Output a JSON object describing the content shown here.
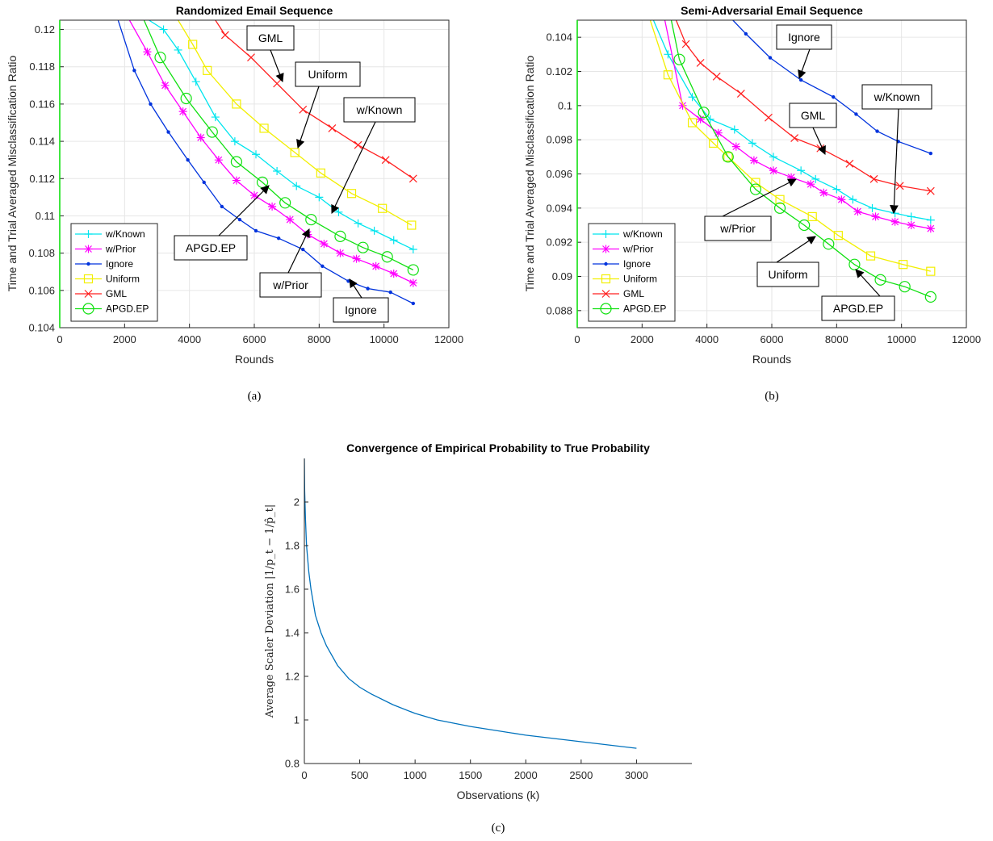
{
  "chart_data": [
    {
      "id": "a",
      "type": "line",
      "title": "Randomized Email Sequence",
      "xlabel": "Rounds",
      "ylabel": "Time and Trial Averaged Misclassification Ratio",
      "caption": "(a)",
      "xlim": [
        0,
        12000
      ],
      "ylim": [
        0.104,
        0.1205
      ],
      "xticks": [
        0,
        2000,
        4000,
        6000,
        8000,
        10000,
        12000
      ],
      "xtick_labels": [
        "0",
        "2000",
        "4000",
        "6000",
        "8000",
        "10000",
        "12000"
      ],
      "yticks": [
        0.104,
        0.106,
        0.108,
        0.11,
        0.112,
        0.114,
        0.116,
        0.118,
        0.12
      ],
      "ytick_labels": [
        "0.104",
        "0.106",
        "0.108",
        "0.11",
        "0.112",
        "0.114",
        "0.116",
        "0.118",
        "0.12"
      ],
      "grid": true,
      "legend_position": "bottom-left",
      "series": [
        {
          "name": "w/Known",
          "color": "#00e5ee",
          "marker": "plus",
          "x": [
            2750,
            3200,
            3650,
            4200,
            4800,
            5400,
            6050,
            6700,
            7300,
            8000,
            8600,
            9200,
            9700,
            10300,
            10900
          ],
          "y": [
            0.1205,
            0.12,
            0.1189,
            0.1172,
            0.1153,
            0.114,
            0.1133,
            0.1124,
            0.1116,
            0.111,
            0.1102,
            0.1096,
            0.1092,
            0.1087,
            0.1082
          ]
        },
        {
          "name": "w/Prior",
          "color": "#ff00ff",
          "marker": "star",
          "x": [
            2150,
            2700,
            3250,
            3800,
            4350,
            4900,
            5450,
            6000,
            6550,
            7100,
            7650,
            8150,
            8650,
            9150,
            9750,
            10300,
            10900
          ],
          "y": [
            0.1205,
            0.1188,
            0.117,
            0.1156,
            0.1142,
            0.113,
            0.1119,
            0.1111,
            0.1105,
            0.1098,
            0.109,
            0.1085,
            0.108,
            0.1077,
            0.1073,
            0.1069,
            0.1064
          ]
        },
        {
          "name": "Ignore",
          "color": "#0033dd",
          "marker": "dot",
          "x": [
            1800,
            2300,
            2800,
            3350,
            3950,
            4450,
            5000,
            5550,
            6050,
            6750,
            7500,
            8100,
            8900,
            9500,
            10200,
            10900
          ],
          "y": [
            0.1205,
            0.1178,
            0.116,
            0.1145,
            0.113,
            0.1118,
            0.1105,
            0.1098,
            0.1092,
            0.1088,
            0.1082,
            0.1073,
            0.1065,
            0.1061,
            0.1059,
            0.1053
          ]
        },
        {
          "name": "Uniform",
          "color": "#f2ef00",
          "marker": "square",
          "x": [
            3650,
            4100,
            4550,
            5450,
            6300,
            7250,
            8050,
            9000,
            9950,
            10850
          ],
          "y": [
            0.1205,
            0.1192,
            0.1178,
            0.116,
            0.1147,
            0.1134,
            0.1123,
            0.1112,
            0.1104,
            0.1095
          ]
        },
        {
          "name": "GML",
          "color": "#ff2020",
          "marker": "x",
          "x": [
            4800,
            5100,
            5900,
            6700,
            7500,
            8400,
            9200,
            10050,
            10900
          ],
          "y": [
            0.1205,
            0.1197,
            0.1185,
            0.1171,
            0.1157,
            0.1147,
            0.1138,
            0.113,
            0.112
          ]
        },
        {
          "name": "APGD.EP",
          "color": "#10e010",
          "marker": "circle",
          "x": [
            2600,
            3100,
            3900,
            4700,
            5450,
            6250,
            6950,
            7750,
            8650,
            9350,
            10100,
            10900
          ],
          "y": [
            0.1205,
            0.1185,
            0.1163,
            0.1145,
            0.1129,
            0.1118,
            0.1107,
            0.1098,
            0.1089,
            0.1083,
            0.1078,
            0.1071
          ]
        }
      ],
      "annotations": [
        "GML",
        "Uniform",
        "w/Known",
        "APGD.EP",
        "w/Prior",
        "Ignore"
      ]
    },
    {
      "id": "b",
      "type": "line",
      "title": "Semi-Adversarial Email Sequence",
      "xlabel": "Rounds",
      "ylabel": "Time and Trial Averaged Misclassification Ratio",
      "caption": "(b)",
      "xlim": [
        0,
        12000
      ],
      "ylim": [
        0.087,
        0.105
      ],
      "xticks": [
        0,
        2000,
        4000,
        6000,
        8000,
        10000,
        12000
      ],
      "xtick_labels": [
        "0",
        "2000",
        "4000",
        "6000",
        "8000",
        "10000",
        "12000"
      ],
      "yticks": [
        0.088,
        0.09,
        0.092,
        0.094,
        0.096,
        0.098,
        0.1,
        0.102,
        0.104
      ],
      "ytick_labels": [
        "0.088",
        "0.09",
        "0.092",
        "0.094",
        "0.096",
        "0.098",
        "0.1",
        "0.102",
        "0.104"
      ],
      "grid": true,
      "legend_position": "bottom-left",
      "series": [
        {
          "name": "w/Known",
          "color": "#00e5ee",
          "marker": "plus",
          "x": [
            2350,
            2800,
            3550,
            4100,
            4850,
            5400,
            6050,
            6900,
            7350,
            8000,
            8500,
            9100,
            9800,
            10300,
            10900
          ],
          "y": [
            0.105,
            0.103,
            0.1005,
            0.0992,
            0.0986,
            0.0978,
            0.097,
            0.0962,
            0.0957,
            0.0951,
            0.0945,
            0.094,
            0.0937,
            0.0935,
            0.0933
          ]
        },
        {
          "name": "w/Prior",
          "color": "#ff00ff",
          "marker": "star",
          "x": [
            2700,
            3250,
            3800,
            4350,
            4900,
            5450,
            6050,
            6600,
            7200,
            7600,
            8150,
            8650,
            9200,
            9800,
            10300,
            10900
          ],
          "y": [
            0.105,
            0.1,
            0.0992,
            0.0984,
            0.0976,
            0.0968,
            0.0962,
            0.0958,
            0.0954,
            0.0949,
            0.0945,
            0.0938,
            0.0935,
            0.0932,
            0.093,
            0.0928
          ]
        },
        {
          "name": "Ignore",
          "color": "#0033dd",
          "marker": "dot",
          "x": [
            4800,
            5200,
            5950,
            6900,
            7900,
            8600,
            9250,
            9900,
            10900
          ],
          "y": [
            0.105,
            0.1042,
            0.1028,
            0.1015,
            0.1005,
            0.0995,
            0.0985,
            0.0979,
            0.0972
          ]
        },
        {
          "name": "Uniform",
          "color": "#f2ef00",
          "marker": "square",
          "x": [
            2250,
            2800,
            3550,
            4200,
            4650,
            5500,
            6250,
            7250,
            8050,
            9050,
            10050,
            10900
          ],
          "y": [
            0.105,
            0.1018,
            0.099,
            0.0978,
            0.097,
            0.0955,
            0.0945,
            0.0935,
            0.0924,
            0.0912,
            0.0907,
            0.0903
          ]
        },
        {
          "name": "GML",
          "color": "#ff2020",
          "marker": "x",
          "x": [
            3050,
            3350,
            3800,
            4300,
            5050,
            5900,
            6700,
            7500,
            8400,
            9150,
            9950,
            10900
          ],
          "y": [
            0.105,
            0.1036,
            0.1025,
            0.1017,
            0.1007,
            0.0993,
            0.0981,
            0.0975,
            0.0966,
            0.0957,
            0.0953,
            0.095
          ]
        },
        {
          "name": "APGD.EP",
          "color": "#10e010",
          "marker": "circle",
          "x": [
            2900,
            3150,
            3900,
            4650,
            5500,
            6250,
            7000,
            7750,
            8550,
            9350,
            10100,
            10900
          ],
          "y": [
            0.105,
            0.1027,
            0.0996,
            0.097,
            0.0951,
            0.094,
            0.093,
            0.0919,
            0.0907,
            0.0898,
            0.0894,
            0.0888
          ]
        }
      ],
      "annotations": [
        "Ignore",
        "w/Known",
        "GML",
        "w/Prior",
        "Uniform",
        "APGD.EP"
      ]
    },
    {
      "id": "c",
      "type": "line",
      "title": "Convergence of Empirical Probability to True Probability",
      "xlabel": "Observations (k)",
      "ylabel": "Average Scaler Deviation |1/p_t − 1/p̂_t|",
      "caption": "(c)",
      "xlim": [
        0,
        3500
      ],
      "ylim": [
        0.8,
        2.2
      ],
      "xticks": [
        0,
        500,
        1000,
        1500,
        2000,
        2500,
        3000
      ],
      "xtick_labels": [
        "0",
        "500",
        "1000",
        "1500",
        "2000",
        "2500",
        "3000"
      ],
      "yticks": [
        0.8,
        1,
        1.2,
        1.4,
        1.6,
        1.8,
        2
      ],
      "ytick_labels": [
        "0.8",
        "1",
        "1.2",
        "1.4",
        "1.6",
        "1.8",
        "2"
      ],
      "grid": false,
      "series": [
        {
          "color": "#0072bd",
          "x": [
            0,
            3,
            10,
            20,
            40,
            60,
            100,
            150,
            200,
            300,
            400,
            500,
            600,
            800,
            1000,
            1200,
            1500,
            2000,
            2500,
            3000
          ],
          "y": [
            2.2,
            2.05,
            1.92,
            1.8,
            1.68,
            1.6,
            1.48,
            1.4,
            1.34,
            1.25,
            1.19,
            1.15,
            1.12,
            1.07,
            1.03,
            1.0,
            0.97,
            0.93,
            0.9,
            0.87
          ]
        }
      ]
    }
  ]
}
